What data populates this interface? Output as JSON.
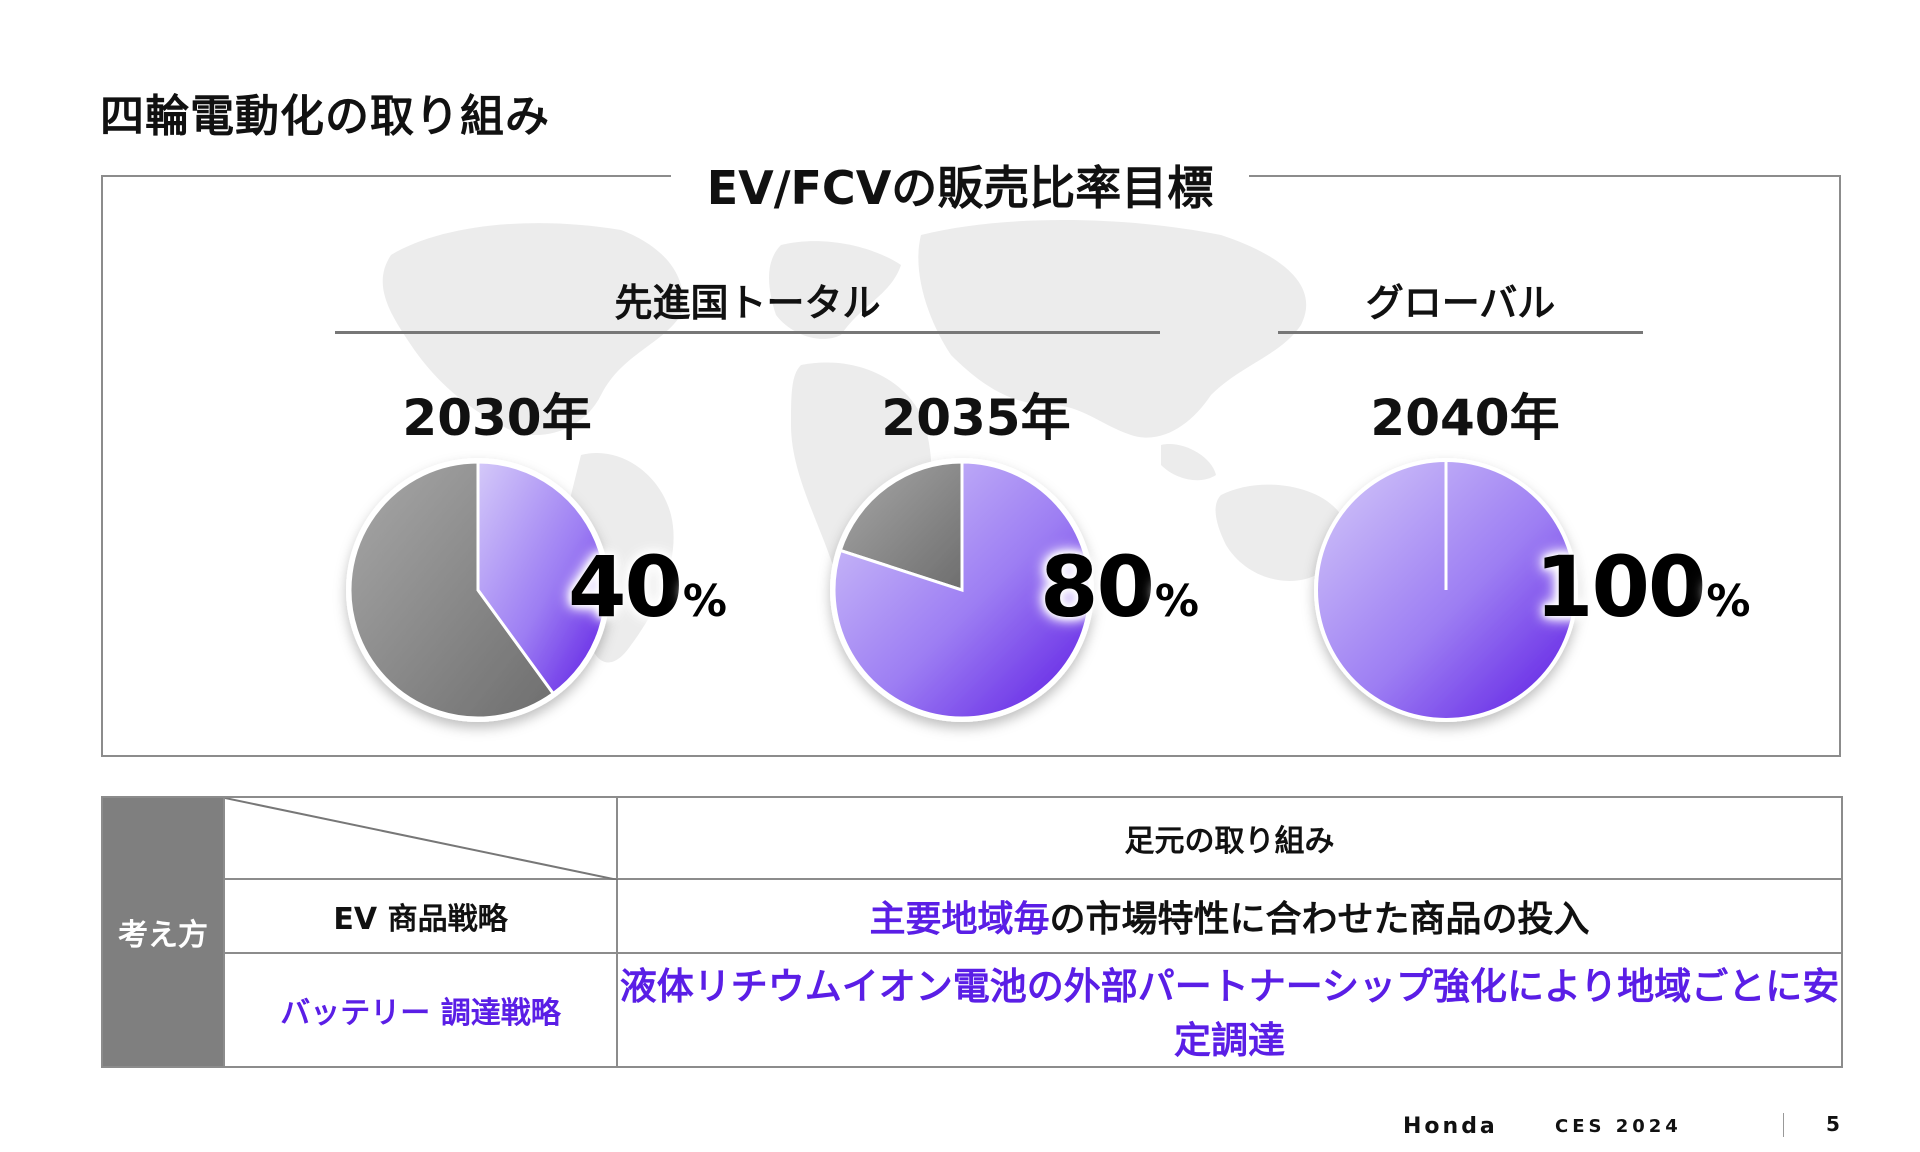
{
  "page": {
    "title": "四輪電動化の取り組み",
    "page_number": "5"
  },
  "footer": {
    "brand": "Honda",
    "event": "CES 2024"
  },
  "chart_data": {
    "type": "pie",
    "title": "EV/FCVの販売比率目標",
    "groups": [
      {
        "label": "先進国トータル"
      },
      {
        "label": "グローバル"
      }
    ],
    "pies": [
      {
        "year_label": "2030年",
        "group": "先進国トータル",
        "value": 40,
        "value_text": "40",
        "unit": "%"
      },
      {
        "year_label": "2035年",
        "group": "先進国トータル",
        "value": 80,
        "value_text": "80",
        "unit": "%"
      },
      {
        "year_label": "2040年",
        "group": "グローバル",
        "value": 100,
        "value_text": "100",
        "unit": "%"
      }
    ],
    "colors": {
      "ev_light": "#c7baf7",
      "ev_dark": "#6a28e8",
      "rest_light": "#b3b3b3",
      "rest_dark": "#7a7a7a"
    }
  },
  "table": {
    "side_header": "考え方",
    "column_header": "足元の取り組み",
    "rows": [
      {
        "label": "EV 商品戦略",
        "highlight": "主要地域毎",
        "text": "の市場特性に合わせた商品の投入"
      },
      {
        "label": "バッテリー 調達戦略",
        "text": "液体リチウムイオン電池の外部パートナーシップ強化により地域ごとに安定調達"
      }
    ],
    "accent_color": "#5a1ee6",
    "side_color": "#7f7f7f"
  }
}
